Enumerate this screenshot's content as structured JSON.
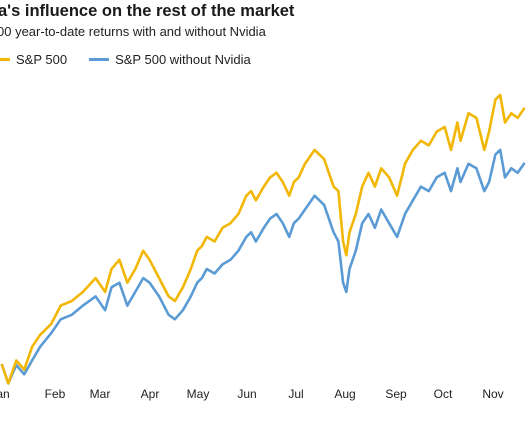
{
  "title": "a's influence on the rest of the market",
  "subtitle": "00 year-to-date returns with and without Nvidia",
  "colors": {
    "sp500": "#F2B705",
    "sp500_ex_nvda": "#5B9BD5"
  },
  "chart_data": {
    "type": "line",
    "title": "a's influence on the rest of the market",
    "subtitle": "00 year-to-date returns with and without Nvidia",
    "xlabel": "",
    "ylabel": "",
    "x_tick_labels": [
      "an",
      "Feb",
      "Mar",
      "Apr",
      "May",
      "Jun",
      "Jul",
      "Aug",
      "Sep",
      "Oct",
      "Nov"
    ],
    "x_range": [
      1,
      330
    ],
    "y_range": [
      -2,
      30
    ],
    "grid": false,
    "legend_position": "top-left",
    "series": [
      {
        "name": "S&P 500",
        "color": "#F2B705",
        "x": [
          1,
          5,
          10,
          15,
          20,
          25,
          32,
          38,
          45,
          52,
          60,
          66,
          70,
          75,
          80,
          85,
          90,
          94,
          100,
          106,
          110,
          115,
          120,
          124,
          127,
          130,
          135,
          140,
          145,
          150,
          155,
          158,
          161,
          166,
          170,
          174,
          178,
          182,
          185,
          188,
          192,
          198,
          204,
          210,
          213,
          216,
          218,
          220,
          224,
          228,
          232,
          236,
          240,
          245,
          250,
          255,
          260,
          265,
          270,
          275,
          280,
          284,
          288,
          290,
          295,
          300,
          305,
          308,
          312,
          315,
          318,
          322,
          326,
          330
        ],
        "y": [
          0.5,
          -1.5,
          1,
          0,
          2.5,
          3.8,
          5,
          7,
          7.5,
          8.5,
          10,
          8.5,
          11,
          12,
          9.5,
          11,
          13,
          12,
          10,
          8,
          7.5,
          9,
          11,
          13,
          13.5,
          14.5,
          14,
          15.5,
          16,
          17,
          19,
          19.5,
          18.5,
          20,
          21,
          21.5,
          20.5,
          19,
          20.5,
          21,
          22.5,
          24,
          23,
          20,
          19.5,
          14,
          12.5,
          15,
          17,
          20,
          21.5,
          20,
          22,
          21,
          19,
          22.5,
          24,
          25,
          24.5,
          26,
          26.5,
          24,
          27,
          25,
          28,
          27.5,
          24,
          26,
          29.5,
          30,
          27,
          28,
          27.5,
          28.5
        ]
      },
      {
        "name": "S&P 500 without Nvidia",
        "color": "#5B9BD5",
        "x": [
          1,
          5,
          10,
          15,
          20,
          25,
          32,
          38,
          45,
          52,
          60,
          66,
          70,
          75,
          80,
          85,
          90,
          94,
          100,
          106,
          110,
          115,
          120,
          124,
          127,
          130,
          135,
          140,
          145,
          150,
          155,
          158,
          161,
          166,
          170,
          174,
          178,
          182,
          185,
          188,
          192,
          198,
          204,
          210,
          213,
          216,
          218,
          220,
          224,
          228,
          232,
          236,
          240,
          245,
          250,
          255,
          260,
          265,
          270,
          275,
          280,
          284,
          288,
          290,
          295,
          300,
          305,
          308,
          312,
          315,
          318,
          322,
          326,
          330
        ],
        "y": [
          0.5,
          -1.5,
          0.5,
          -0.5,
          1,
          2.5,
          4,
          5.5,
          6,
          7,
          8,
          6.5,
          9,
          9.5,
          7,
          8.5,
          10,
          9.5,
          8,
          6,
          5.5,
          6.5,
          8,
          9.5,
          10,
          11,
          10.5,
          11.5,
          12,
          13,
          14.5,
          15,
          14,
          15.5,
          16.5,
          17,
          16,
          14.5,
          16,
          16.5,
          17.5,
          19,
          18,
          15,
          14,
          9.5,
          8.5,
          11,
          13,
          16,
          17,
          15.5,
          17.5,
          16,
          14.5,
          17,
          18.5,
          20,
          19.5,
          21,
          21.5,
          19.5,
          22,
          20.5,
          22.5,
          22,
          19.5,
          20.5,
          23.5,
          24,
          21,
          22,
          21.5,
          22.5
        ]
      }
    ]
  }
}
